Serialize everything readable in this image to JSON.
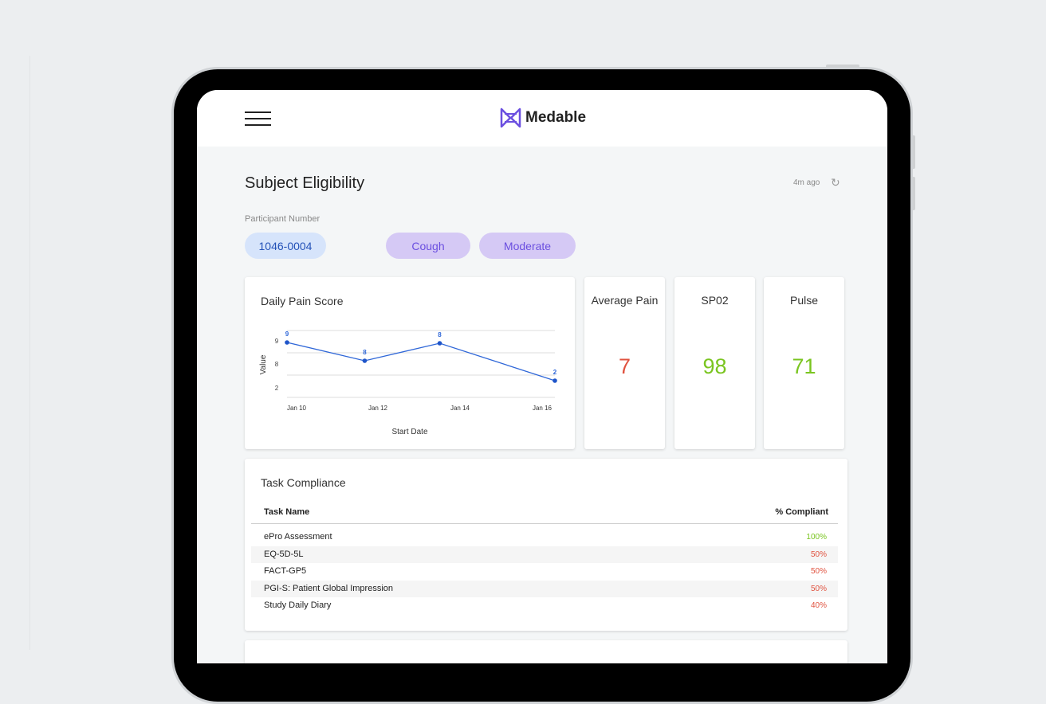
{
  "header": {
    "logo_text": "Medable",
    "menu_icon": "hamburger-icon"
  },
  "page": {
    "title": "Subject Eligibility",
    "updated": "4m ago",
    "participant_label": "Participant Number",
    "participant_number": "1046-0004",
    "tags": [
      "Cough",
      "Moderate"
    ]
  },
  "colors": {
    "accent": "#6b4fe0",
    "good": "#7ac520",
    "bad": "#e0523f",
    "line": "#2f67d8"
  },
  "chart_data": {
    "type": "line",
    "title": "Daily Pain Score",
    "xlabel": "Start Date",
    "ylabel": "Value",
    "categories": [
      "Jan 10",
      "Jan 12",
      "Jan 13.5",
      "Jan 16"
    ],
    "x_ticks": [
      "Jan 10",
      "Jan 12",
      "Jan 14",
      "Jan 16"
    ],
    "y_ticks": [
      "9",
      "8",
      "2"
    ],
    "values": [
      9,
      8,
      8,
      2
    ],
    "point_labels": [
      "9",
      "8",
      "8",
      "2"
    ],
    "ylim": [
      0,
      10
    ],
    "grid": true
  },
  "stats": [
    {
      "label": "Average Pain",
      "value": "7"
    },
    {
      "label": "SP02",
      "value": "98"
    },
    {
      "label": "Pulse",
      "value": "71"
    }
  ],
  "compliance": {
    "title": "Task Compliance",
    "col_task": "Task Name",
    "col_pct": "% Compliant",
    "rows": [
      {
        "name": "ePro Assessment",
        "pct": "100%"
      },
      {
        "name": "EQ-5D-5L",
        "pct": "50%"
      },
      {
        "name": "FACT-GP5",
        "pct": "50%"
      },
      {
        "name": "PGI-S: Patient Global Impression",
        "pct": "50%"
      },
      {
        "name": "Study Daily Diary",
        "pct": "40%"
      }
    ]
  }
}
